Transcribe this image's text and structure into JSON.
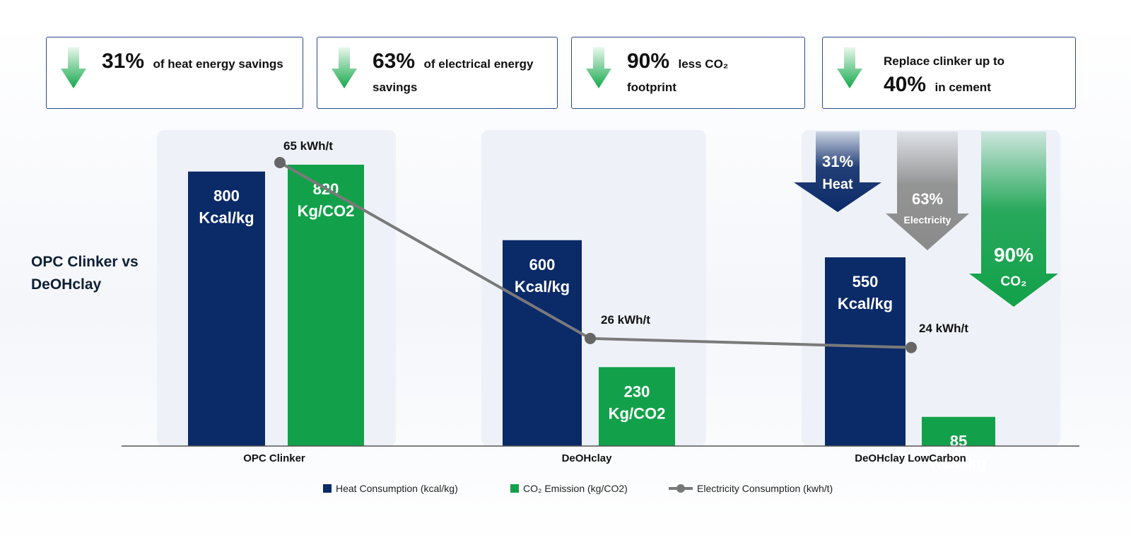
{
  "colors": {
    "heat": "#0b2a68",
    "co2": "#12a14a",
    "electricity": "#7a7a7a",
    "card_border": "#2b4a8c",
    "panel": "#eef2f8"
  },
  "stat_cards": [
    {
      "icon": "down-arrow-icon",
      "big": "31%",
      "text": "of heat energy savings",
      "line2": "",
      "big2": "",
      "tail": ""
    },
    {
      "icon": "down-arrow-icon",
      "big": "63%",
      "text": "of electrical energy",
      "line2": "savings",
      "big2": "",
      "tail": ""
    },
    {
      "icon": "down-arrow-icon",
      "big": "90%",
      "text": "less CO₂",
      "line2": "footprint",
      "big2": "",
      "tail": ""
    },
    {
      "icon": "down-arrow-icon",
      "big": "",
      "text": "Replace clinker up to",
      "line2": "",
      "big2": "40%",
      "tail": "in cement"
    }
  ],
  "side_title": "OPC Clinker vs DeOHclay",
  "reductions": [
    {
      "value": "31%",
      "label": "Heat",
      "color": "#0b2a68"
    },
    {
      "value": "63%",
      "label": "Electricity",
      "color": "#8a8a8a"
    },
    {
      "value": "90%",
      "label": "CO₂",
      "color": "#12a14a"
    }
  ],
  "chart_data": {
    "type": "bar",
    "categories": [
      "OPC Clinker",
      "DeOHclay",
      "DeOHclay LowCarbon"
    ],
    "series": [
      {
        "name": "Heat Consumption (kcal/kg)",
        "values": [
          800,
          600,
          550
        ],
        "labels": [
          [
            "800",
            "Kcal/kg"
          ],
          [
            "600",
            "Kcal/kg"
          ],
          [
            "550",
            "Kcal/kg"
          ]
        ]
      },
      {
        "name": "CO₂ Emission (kg/CO2)",
        "values": [
          820,
          230,
          85
        ],
        "labels": [
          [
            "820",
            "Kg/CO2"
          ],
          [
            "230",
            "Kg/CO2"
          ],
          [
            "85",
            "Kcal/kg"
          ]
        ]
      }
    ],
    "line_series": {
      "name": "Electricity Consumption (kwh/t)",
      "values": [
        65,
        26,
        24
      ],
      "labels": [
        "65 kWh/t",
        "26 kWh/t",
        "24 kWh/t"
      ]
    },
    "legend": "bottom",
    "grid": false
  }
}
